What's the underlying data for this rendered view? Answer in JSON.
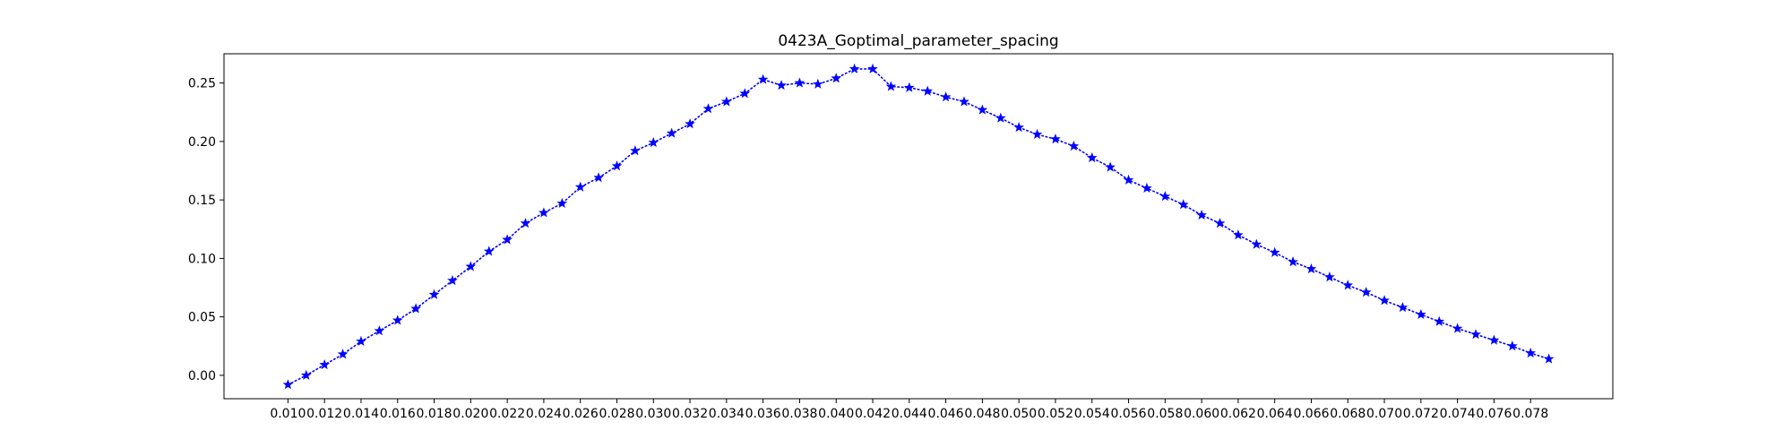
{
  "chart_data": {
    "type": "line",
    "title": "0423A_Goptimal_parameter_spacing",
    "xlabel": "",
    "ylabel": "",
    "xlim": [
      0.0065,
      0.0825
    ],
    "ylim": [
      -0.02,
      0.275
    ],
    "xticks": [
      0.01,
      0.012,
      0.014,
      0.016,
      0.018,
      0.02,
      0.022,
      0.024,
      0.026,
      0.028,
      0.03,
      0.032,
      0.034,
      0.036,
      0.038,
      0.04,
      0.042,
      0.044,
      0.046,
      0.048,
      0.05,
      0.052,
      0.054,
      0.056,
      0.058,
      0.06,
      0.062,
      0.064,
      0.066,
      0.068,
      0.07,
      0.072,
      0.074,
      0.076,
      0.078
    ],
    "xtick_labels": [
      "0.010",
      "0.012",
      "0.014",
      "0.016",
      "0.018",
      "0.020",
      "0.022",
      "0.024",
      "0.026",
      "0.028",
      "0.030",
      "0.032",
      "0.034",
      "0.036",
      "0.038",
      "0.040",
      "0.042",
      "0.044",
      "0.046",
      "0.048",
      "0.050",
      "0.052",
      "0.054",
      "0.056",
      "0.058",
      "0.060",
      "0.062",
      "0.064",
      "0.066",
      "0.068",
      "0.070",
      "0.072",
      "0.074",
      "0.076",
      "0.078"
    ],
    "yticks": [
      0.0,
      0.05,
      0.1,
      0.15,
      0.2,
      0.25
    ],
    "ytick_labels": [
      "0.00",
      "0.05",
      "0.10",
      "0.15",
      "0.20",
      "0.25"
    ],
    "grid": false,
    "series": [
      {
        "color": "#0000ff",
        "linestyle": "dotted",
        "marker": "star",
        "x": [
          0.01,
          0.011,
          0.012,
          0.013,
          0.014,
          0.015,
          0.016,
          0.017,
          0.018,
          0.019,
          0.02,
          0.021,
          0.022,
          0.023,
          0.024,
          0.025,
          0.026,
          0.027,
          0.028,
          0.029,
          0.03,
          0.031,
          0.032,
          0.033,
          0.034,
          0.035,
          0.036,
          0.037,
          0.038,
          0.039,
          0.04,
          0.041,
          0.042,
          0.043,
          0.044,
          0.045,
          0.046,
          0.047,
          0.048,
          0.049,
          0.05,
          0.051,
          0.052,
          0.053,
          0.054,
          0.055,
          0.056,
          0.057,
          0.058,
          0.059,
          0.06,
          0.061,
          0.062,
          0.063,
          0.064,
          0.065,
          0.066,
          0.067,
          0.068,
          0.069,
          0.07,
          0.071,
          0.072,
          0.073,
          0.074,
          0.075,
          0.076,
          0.077,
          0.078,
          0.079
        ],
        "y": [
          -0.008,
          0.0,
          0.009,
          0.018,
          0.029,
          0.038,
          0.047,
          0.057,
          0.069,
          0.081,
          0.093,
          0.106,
          0.116,
          0.13,
          0.139,
          0.147,
          0.161,
          0.169,
          0.179,
          0.192,
          0.199,
          0.207,
          0.215,
          0.228,
          0.234,
          0.241,
          0.253,
          0.248,
          0.25,
          0.249,
          0.254,
          0.262,
          0.262,
          0.247,
          0.246,
          0.243,
          0.238,
          0.234,
          0.227,
          0.22,
          0.212,
          0.206,
          0.202,
          0.196,
          0.186,
          0.178,
          0.167,
          0.16,
          0.153,
          0.146,
          0.137,
          0.13,
          0.12,
          0.112,
          0.105,
          0.097,
          0.091,
          0.084,
          0.077,
          0.071,
          0.064,
          0.058,
          0.052,
          0.046,
          0.04,
          0.035,
          0.03,
          0.025,
          0.019,
          0.014
        ]
      }
    ]
  }
}
